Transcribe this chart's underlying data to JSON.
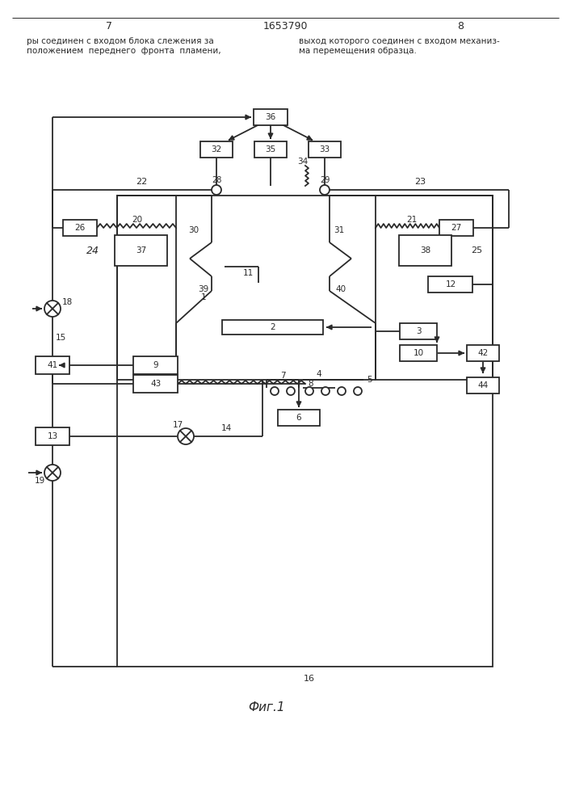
{
  "page_left": "7",
  "page_center": "1653790",
  "page_right": "8",
  "text_left": "ры соединен с входом блока слежения за\nположением  переднего  фронта  пламени,",
  "text_right": "выход которого соединен с входом механиз-\nма перемещения образца.",
  "caption": "Фиг.1",
  "bg": "#ffffff",
  "lc": "#2a2a2a",
  "lw": 1.3
}
